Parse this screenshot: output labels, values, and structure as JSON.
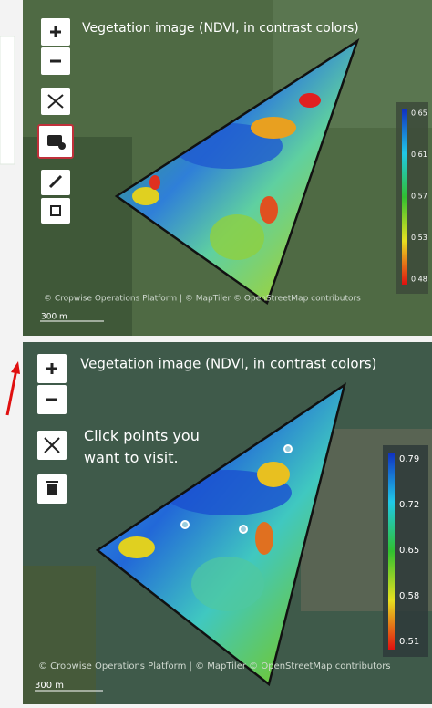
{
  "panels": [
    {
      "title": "Vegetation image (NDVI, in contrast colors)",
      "legend": [
        "0.65",
        "0.61",
        "0.57",
        "0.53",
        "0.48"
      ],
      "attribution": "© Cropwise Operations Platform | © MapTiler © OpenStreetMap contributors",
      "scale": "300 m"
    },
    {
      "title": "Vegetation image (NDVI, in contrast colors)",
      "hint": "Click points you want to visit.",
      "legend": [
        "0.79",
        "0.72",
        "0.65",
        "0.58",
        "0.51"
      ],
      "attribution": "© Cropwise Operations Platform | © MapTiler © OpenStreetMap contributors",
      "scale": "300 m"
    }
  ]
}
